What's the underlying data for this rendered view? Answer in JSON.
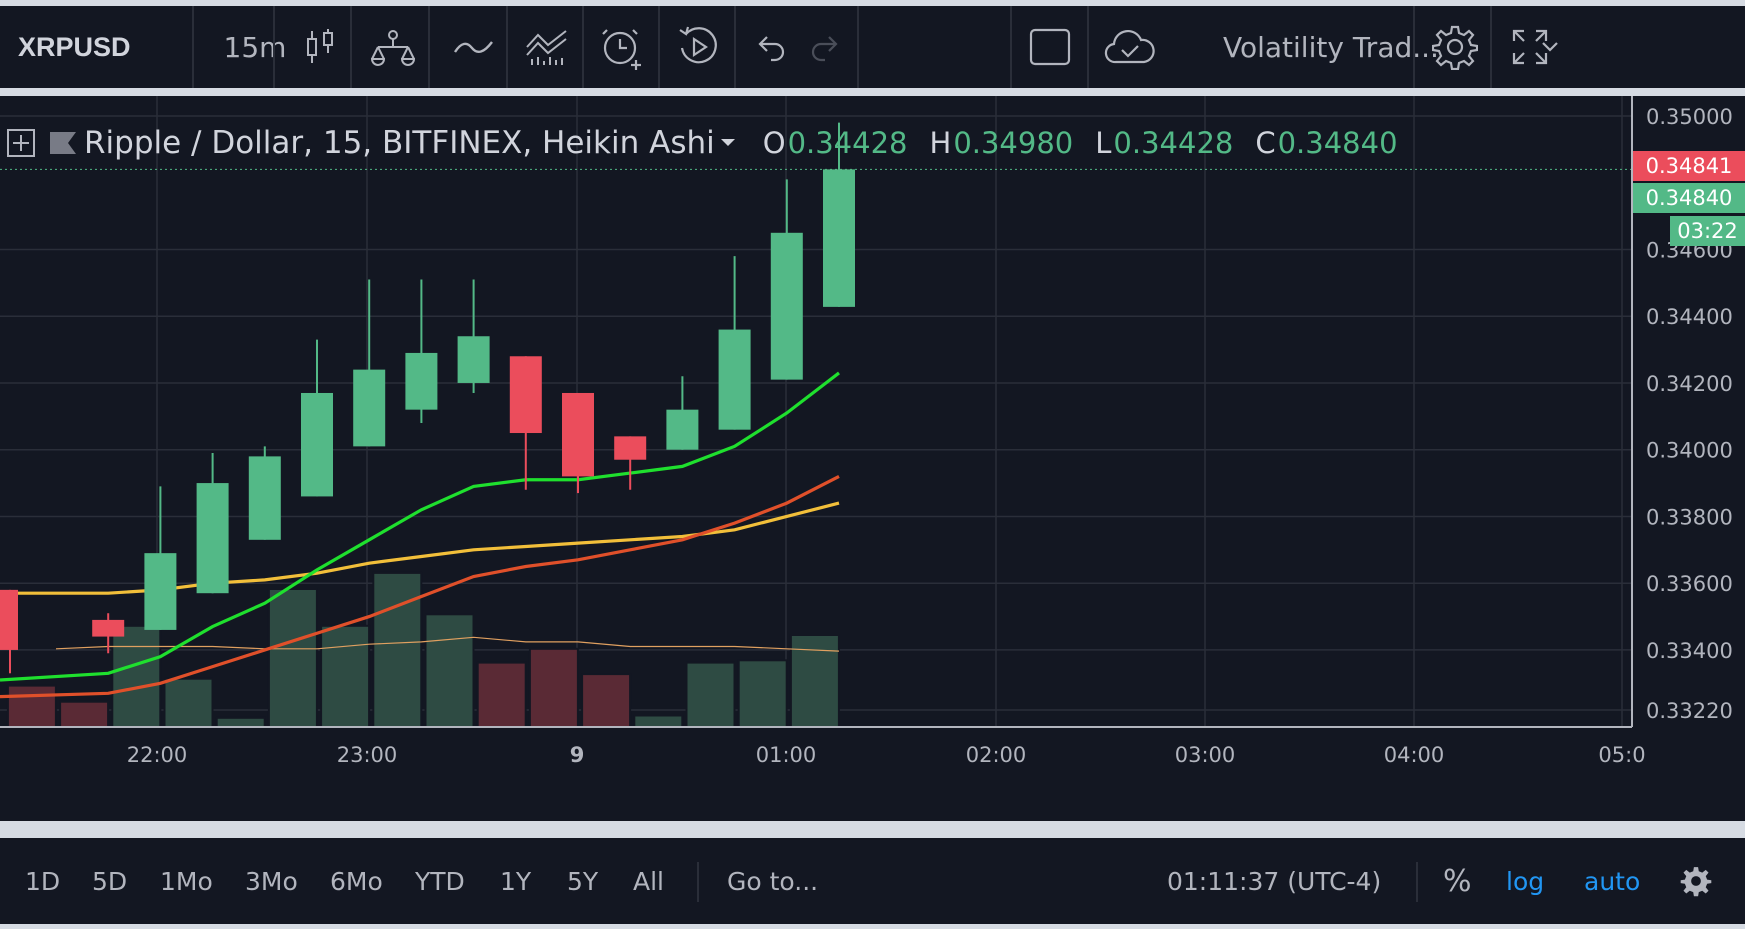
{
  "toolbar": {
    "symbol": "XRPUSD",
    "interval": "15m",
    "template_name": "Volatility Trad...",
    "icons": [
      "candles-icon",
      "compare-icon",
      "indicator-icon",
      "templates-icon",
      "alert-icon",
      "replay-icon",
      "undo-icon",
      "redo-icon",
      "rectangle-icon",
      "cloud-icon",
      "chevron-down-icon",
      "gear-icon",
      "fullscreen-icon"
    ]
  },
  "legend": {
    "title": "Ripple / Dollar, 15, BITFINEX, Heikin Ashi",
    "o_label": "O",
    "o_value": "0.34428",
    "h_label": "H",
    "h_value": "0.34980",
    "l_label": "L",
    "l_value": "0.34428",
    "c_label": "C",
    "c_value": "0.34840"
  },
  "price_tags": {
    "red": "0.34841",
    "green": "0.34840",
    "countdown": "03:22"
  },
  "colors": {
    "up": "#53b987",
    "down": "#eb4d5c",
    "ma_green": "#1fe02e",
    "ma_orange": "#e0502a",
    "ma_yellow": "#f2bf3a",
    "background": "#131722"
  },
  "chart_data": {
    "type": "candlestick",
    "title": "Ripple / Dollar, 15, BITFINEX, Heikin Ashi",
    "price_ticks": [
      0.3322,
      0.334,
      0.336,
      0.338,
      0.34,
      0.342,
      0.344,
      0.346,
      0.35
    ],
    "price_tick_labels": [
      "0.33220",
      "0.33400",
      "0.33600",
      "0.33800",
      "0.34000",
      "0.34200",
      "0.34400",
      "0.34600",
      "0.35000"
    ],
    "time_labels": [
      "22:00",
      "23:00",
      "9",
      "01:00",
      "02:00",
      "03:00",
      "04:00",
      "05:0"
    ],
    "ylim": [
      0.3318,
      0.3508
    ],
    "candles": [
      {
        "i": 0,
        "o": 0.3358,
        "c": 0.334,
        "h": 0.3358,
        "l": 0.3333
      },
      {
        "i": 1,
        "o": 0.3349,
        "c": 0.3344,
        "h": 0.3351,
        "l": 0.3339
      },
      {
        "i": 2,
        "o": 0.3346,
        "c": 0.3369,
        "h": 0.3389,
        "l": 0.3346
      },
      {
        "i": 3,
        "o": 0.3357,
        "c": 0.339,
        "h": 0.3399,
        "l": 0.3357
      },
      {
        "i": 4,
        "o": 0.3373,
        "c": 0.3398,
        "h": 0.3401,
        "l": 0.3373
      },
      {
        "i": 5,
        "o": 0.3386,
        "c": 0.3417,
        "h": 0.3433,
        "l": 0.3386
      },
      {
        "i": 6,
        "o": 0.3401,
        "c": 0.3424,
        "h": 0.3451,
        "l": 0.3401
      },
      {
        "i": 7,
        "o": 0.3412,
        "c": 0.3429,
        "h": 0.3451,
        "l": 0.3408
      },
      {
        "i": 8,
        "o": 0.342,
        "c": 0.3434,
        "h": 0.3451,
        "l": 0.3417
      },
      {
        "i": 9,
        "o": 0.3428,
        "c": 0.3405,
        "h": 0.3428,
        "l": 0.3388
      },
      {
        "i": 10,
        "o": 0.3417,
        "c": 0.3392,
        "h": 0.3417,
        "l": 0.3387
      },
      {
        "i": 11,
        "o": 0.3404,
        "c": 0.3397,
        "h": 0.3404,
        "l": 0.3388
      },
      {
        "i": 12,
        "o": 0.34,
        "c": 0.3412,
        "h": 0.3422,
        "l": 0.34
      },
      {
        "i": 13,
        "o": 0.3406,
        "c": 0.3436,
        "h": 0.3458,
        "l": 0.3406
      },
      {
        "i": 14,
        "o": 0.3421,
        "c": 0.3465,
        "h": 0.3481,
        "l": 0.3421
      },
      {
        "i": 15,
        "o": 0.34428,
        "c": 0.3484,
        "h": 0.3498,
        "l": 0.34428
      }
    ],
    "volume": [
      {
        "i": -1,
        "v": 0.18,
        "dir": "down"
      },
      {
        "i": 0,
        "v": 0.11,
        "dir": "down"
      },
      {
        "i": 1,
        "v": 0.44,
        "dir": "up"
      },
      {
        "i": 2,
        "v": 0.21,
        "dir": "up"
      },
      {
        "i": 3,
        "v": 0.04,
        "dir": "up"
      },
      {
        "i": 4,
        "v": 0.6,
        "dir": "up"
      },
      {
        "i": 5,
        "v": 0.44,
        "dir": "up"
      },
      {
        "i": 6,
        "v": 0.67,
        "dir": "up"
      },
      {
        "i": 7,
        "v": 0.49,
        "dir": "up"
      },
      {
        "i": 8,
        "v": 0.28,
        "dir": "down"
      },
      {
        "i": 9,
        "v": 0.34,
        "dir": "down"
      },
      {
        "i": 10,
        "v": 0.23,
        "dir": "down"
      },
      {
        "i": 11,
        "v": 0.05,
        "dir": "up"
      },
      {
        "i": 12,
        "v": 0.28,
        "dir": "up"
      },
      {
        "i": 13,
        "v": 0.29,
        "dir": "up"
      },
      {
        "i": 14,
        "v": 0.4,
        "dir": "up"
      }
    ],
    "volume_ma": [
      0.34,
      0.35,
      0.35,
      0.35,
      0.34,
      0.34,
      0.36,
      0.37,
      0.39,
      0.37,
      0.37,
      0.35,
      0.35,
      0.35,
      0.34,
      0.33
    ],
    "ma_green": [
      0.3331,
      0.3333,
      0.3338,
      0.3347,
      0.3354,
      0.3364,
      0.3373,
      0.3382,
      0.3389,
      0.3391,
      0.3391,
      0.3393,
      0.3395,
      0.3401,
      0.3411,
      0.3423
    ],
    "ma_orange": [
      0.3326,
      0.3327,
      0.333,
      0.3335,
      0.334,
      0.3345,
      0.335,
      0.3356,
      0.3362,
      0.3365,
      0.3367,
      0.337,
      0.3373,
      0.3378,
      0.3384,
      0.3392
    ],
    "ma_yellow": [
      0.3357,
      0.3357,
      0.3358,
      0.336,
      0.3361,
      0.3363,
      0.3366,
      0.3368,
      0.337,
      0.3371,
      0.3372,
      0.3373,
      0.3374,
      0.3376,
      0.338,
      0.3384
    ],
    "last_price": 0.3484
  },
  "range_bar": {
    "ranges": [
      "1D",
      "5D",
      "1Mo",
      "3Mo",
      "6Mo",
      "YTD",
      "1Y",
      "5Y",
      "All"
    ],
    "goto": "Go to...",
    "clock": "01:11:37 (UTC-4)",
    "percent": "%",
    "log": "log",
    "auto": "auto"
  }
}
